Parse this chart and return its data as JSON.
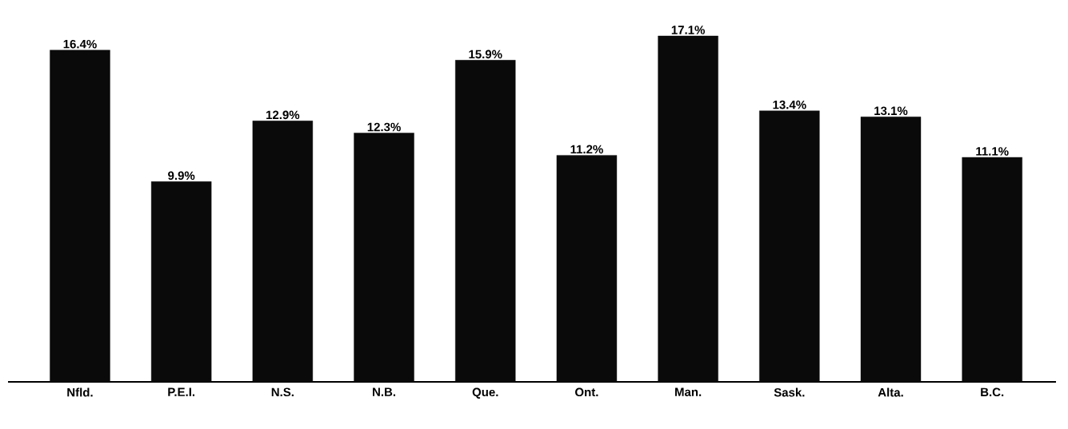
{
  "chart_data": {
    "type": "bar",
    "categories": [
      "Nfld.",
      "P.E.I.",
      "N.S.",
      "N.B.",
      "Que.",
      "Ont.",
      "Man.",
      "Sask.",
      "Alta.",
      "B.C."
    ],
    "values": [
      16.4,
      9.9,
      12.9,
      12.3,
      15.9,
      11.2,
      17.1,
      13.4,
      13.1,
      11.1
    ],
    "value_labels": [
      "16.4%",
      "9.9%",
      "12.9%",
      "12.3%",
      "15.9%",
      "11.2%",
      "17.1%",
      "13.4%",
      "13.1%",
      "11.1%"
    ],
    "color": "#0a0a0a"
  }
}
